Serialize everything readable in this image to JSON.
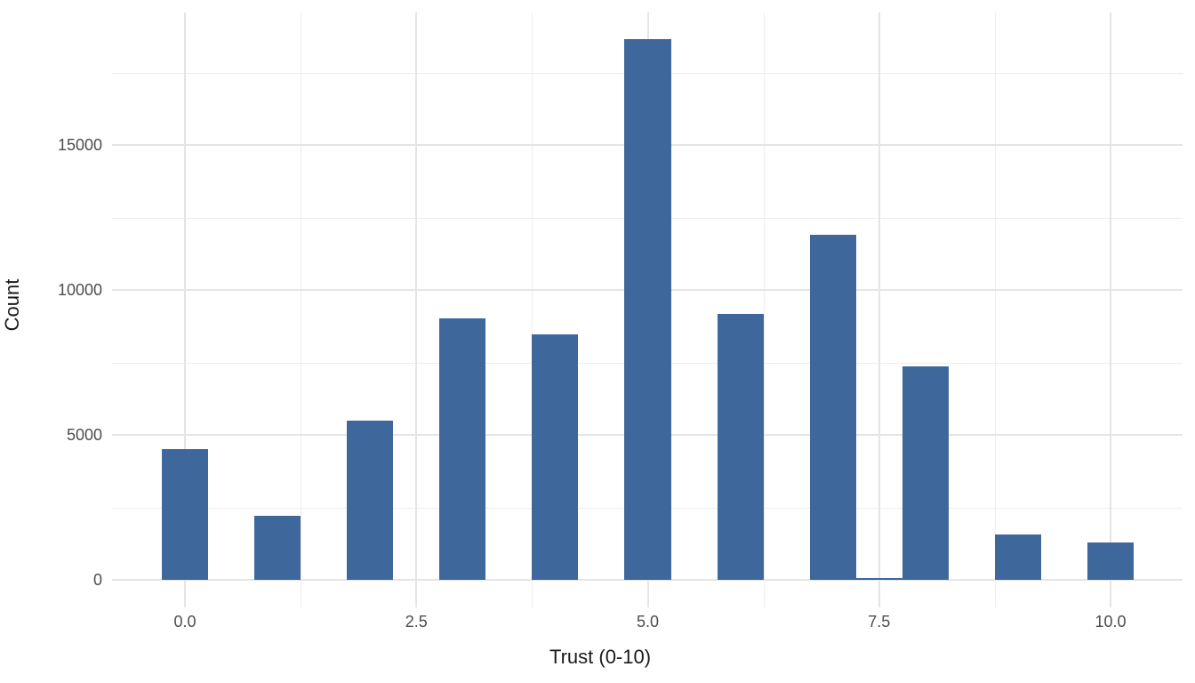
{
  "figure": {
    "background_color": "#FFFFFF",
    "panel_background_color": "#FFFFFF"
  },
  "chart_data": {
    "type": "bar",
    "title": "",
    "xlabel": "Trust (0-10)",
    "ylabel": "Count",
    "x": [
      0,
      1,
      2,
      3,
      4,
      5,
      6,
      7,
      7.5,
      8,
      9,
      10
    ],
    "values": [
      4500,
      2210,
      5490,
      9010,
      8470,
      18650,
      9170,
      11900,
      50,
      7360,
      1560,
      1290
    ],
    "bar_width_units": 0.5,
    "xlim": [
      -0.79,
      10.79
    ],
    "ylim": [
      0,
      19580
    ],
    "x_tick_values": [
      0,
      2.5,
      5,
      7.5,
      10
    ],
    "x_tick_labels": [
      "0.0",
      "2.5",
      "5.0",
      "7.5",
      "10.0"
    ],
    "x_minor_tick_values": [
      1.25,
      3.75,
      6.25,
      8.75
    ],
    "y_tick_values": [
      0,
      5000,
      10000,
      15000
    ],
    "y_tick_labels": [
      "0",
      "5000",
      "10000",
      "15000"
    ],
    "y_minor_tick_values": [
      2500,
      7500,
      12500,
      17500
    ],
    "grid": true,
    "legend": "none",
    "bar_color": "#3E679B",
    "major_grid_color": "#E5E5E5",
    "minor_grid_color": "#EDEDED",
    "tick_label_color": "#4D4D4D",
    "axis_title_color": "#1A1A1A"
  }
}
